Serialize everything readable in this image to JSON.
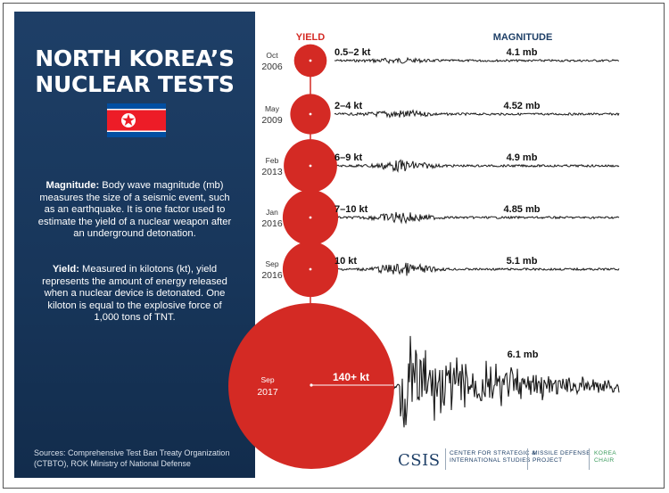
{
  "infographic": {
    "title_line1": "NORTH KOREA’S",
    "title_line2": "NUCLEAR TESTS",
    "magnitude_term": "Magnitude:",
    "magnitude_text": " Body wave magnitude (mb) measures the size of a seismic event, such as an earthquake. It is one factor used to estimate the yield of a nuclear weapon after an underground detonation.",
    "yield_term": "Yield:",
    "yield_text": " Measured in kilotons (kt), yield represents the amount of energy released when a nuclear device is detonated. One kiloton is equal to the explosive force of 1,000 tons of TNT.",
    "sources": "Sources: Comprehensive Test Ban Treaty Organization (CTBTO), ROK Ministry of National Defense",
    "logo": {
      "csis": "CSIS",
      "center_line1": "CENTER FOR STRATEGIC &",
      "center_line2": "INTERNATIONAL STUDIES",
      "missile_line1": "MISSILE DEFENSE",
      "missile_line2": "PROJECT",
      "korea_line1": "KOREA",
      "korea_line2": "CHAIR"
    }
  },
  "colors": {
    "panel_navy": "#173559",
    "circle_red": "#d42a24",
    "header_red": "#d42a24",
    "header_navy": "#1e3f67",
    "text_dark": "#111111"
  },
  "chart_data": {
    "type": "scatter",
    "title": "",
    "column_headers": {
      "yield": "YIELD",
      "magnitude": "MAGNITUDE"
    },
    "series": [
      {
        "name": "Nuclear tests",
        "points": [
          {
            "month": "Oct",
            "year": "2006",
            "yield_label": "0.5–2 kt",
            "yield_kt_max": 2,
            "magnitude_label": "4.1 mb",
            "magnitude_mb": 4.1
          },
          {
            "month": "May",
            "year": "2009",
            "yield_label": "2–4 kt",
            "yield_kt_max": 4,
            "magnitude_label": "4.52 mb",
            "magnitude_mb": 4.52
          },
          {
            "month": "Feb",
            "year": "2013",
            "yield_label": "6–9 kt",
            "yield_kt_max": 9,
            "magnitude_label": "4.9 mb",
            "magnitude_mb": 4.9
          },
          {
            "month": "Jan",
            "year": "2016",
            "yield_label": "7–10 kt",
            "yield_kt_max": 10,
            "magnitude_label": "4.85 mb",
            "magnitude_mb": 4.85
          },
          {
            "month": "Sep",
            "year": "2016",
            "yield_label": "10 kt",
            "yield_kt_max": 10,
            "magnitude_label": "5.1 mb",
            "magnitude_mb": 5.1
          },
          {
            "month": "Sep",
            "year": "2017",
            "yield_label": "140+ kt",
            "yield_kt_max": 140,
            "magnitude_label": "6.1 mb",
            "magnitude_mb": 6.1
          }
        ]
      }
    ]
  }
}
